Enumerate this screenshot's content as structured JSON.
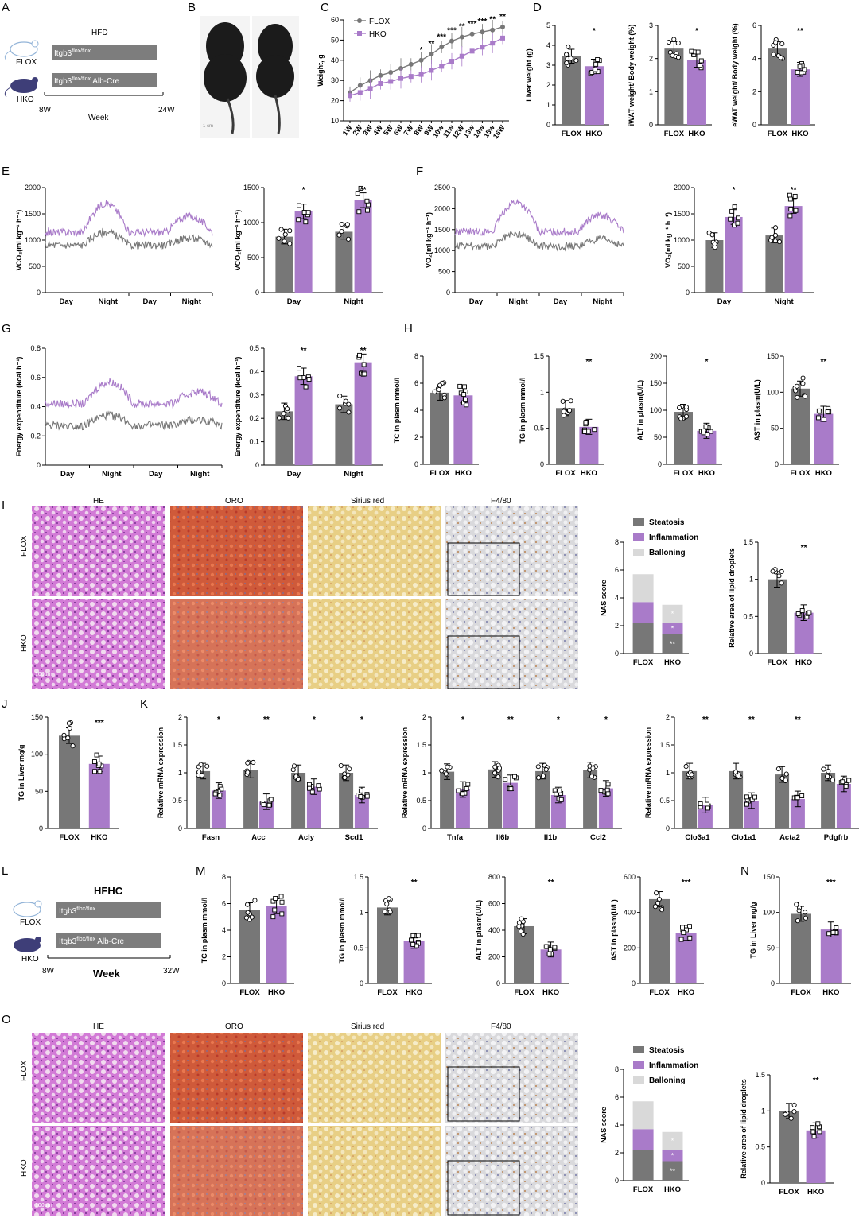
{
  "colors": {
    "flox": "#777777",
    "hko": "#a97bc9",
    "ballooning": "#d9d9d9",
    "axis": "#000000"
  },
  "panel_letters": [
    "A",
    "B",
    "C",
    "D",
    "E",
    "F",
    "G",
    "H",
    "I",
    "J",
    "K",
    "L",
    "M",
    "N",
    "O"
  ],
  "group_labels": {
    "flox": "FLOX",
    "hko": "HKO"
  },
  "panelA": {
    "diet": "HFD",
    "flox_label": "FLOX",
    "hko_label": "HKO",
    "flox_geno": "Itgb3",
    "flox_sup": "flox/flox",
    "hko_geno": "Itgb3",
    "hko_sup": "flox/flox",
    "hko_suffix": " Alb-Cre",
    "start": "8W",
    "end": "24W",
    "axis_title": "Week"
  },
  "panelB": {
    "scale": "1 cm"
  },
  "panelL": {
    "diet": "HFHC",
    "flox_label": "FLOX",
    "hko_label": "HKO",
    "flox_geno": "Itgb3",
    "flox_sup": "flox/flox",
    "hko_geno": "Itgb3",
    "hko_sup": "flox/flox",
    "hko_suffix": " Alb-Cre",
    "start": "8W",
    "end": "32W",
    "axis_title": "Week"
  },
  "histology_I": {
    "columns": [
      "HE",
      "ORO",
      "Sirius red",
      "F4/80"
    ],
    "rows": [
      "FLOX",
      "HKO"
    ],
    "scale": "100μm"
  },
  "histology_O": {
    "columns": [
      "HE",
      "ORO",
      "Sirius red",
      "F4/80"
    ],
    "rows": [
      "FLOX",
      "HKO"
    ],
    "scale": "100μm"
  },
  "chart_data": [
    {
      "id": "C",
      "type": "line",
      "title": "",
      "xlabel": "",
      "ylabel": "Weight, g",
      "ylim": [
        10,
        60
      ],
      "yticks": [
        10,
        20,
        30,
        40,
        50,
        60
      ],
      "categories": [
        "1W",
        "2W",
        "3W",
        "4W",
        "5W",
        "6W",
        "7W",
        "8W",
        "9W",
        "10w",
        "11w",
        "12W",
        "13w",
        "14w",
        "15w",
        "16W"
      ],
      "series": [
        {
          "name": "FLOX",
          "values": [
            24,
            27.5,
            30,
            32.5,
            34,
            36,
            38,
            40,
            43,
            46.5,
            49.5,
            51.5,
            53,
            54,
            55,
            56.5
          ]
        },
        {
          "name": "HKO",
          "values": [
            22.5,
            24,
            26,
            28.5,
            29.5,
            31,
            32,
            33,
            35,
            37,
            39.5,
            42,
            44.5,
            46.5,
            48.5,
            51
          ]
        }
      ],
      "significance": [
        "",
        "",
        "",
        "",
        "",
        "",
        "",
        "*",
        "**",
        "***",
        "***",
        "**",
        "***",
        "***",
        "**",
        "**"
      ],
      "legend": "top-left"
    },
    {
      "id": "D1",
      "type": "bar",
      "categories": [
        "FLOX",
        "HKO"
      ],
      "values": [
        3.45,
        2.95
      ],
      "ylabel": "Liver weight (g)",
      "ylim": [
        0,
        5
      ],
      "yticks": [
        0,
        1,
        2,
        3,
        4,
        5
      ],
      "significance": "*"
    },
    {
      "id": "D2",
      "type": "bar",
      "categories": [
        "FLOX",
        "HKO"
      ],
      "values": [
        2.3,
        1.95
      ],
      "ylabel": "iWAT weight/ Body weight (%)",
      "ylim": [
        0,
        3
      ],
      "yticks": [
        0,
        1,
        2,
        3
      ],
      "significance": "*"
    },
    {
      "id": "D3",
      "type": "bar",
      "categories": [
        "FLOX",
        "HKO"
      ],
      "values": [
        4.6,
        3.35
      ],
      "ylabel": "eWAT weight/ Body weight (%)",
      "ylim": [
        0,
        6
      ],
      "yticks": [
        0,
        2,
        4,
        6
      ],
      "significance": "**"
    },
    {
      "id": "E1",
      "type": "line",
      "ylabel": "VCO₂(ml kg⁻¹ h⁻¹)",
      "ylim": [
        0,
        2000
      ],
      "yticks": [
        0,
        500,
        1000,
        1500,
        2000
      ],
      "xlabels": [
        "Day",
        "Night",
        "Day",
        "Night"
      ],
      "series": [
        {
          "name": "FLOX",
          "baseline": 900,
          "night_bump": 250
        },
        {
          "name": "HKO",
          "baseline": 1150,
          "night_bump": 550
        }
      ]
    },
    {
      "id": "E2",
      "type": "bar",
      "groups": [
        "Day",
        "Night"
      ],
      "series": [
        {
          "name": "FLOX",
          "values": [
            800,
            870
          ]
        },
        {
          "name": "HKO",
          "values": [
            1160,
            1320
          ]
        }
      ],
      "ylabel": "VCO₂(ml kg⁻¹ h⁻¹)",
      "ylim": [
        0,
        1500
      ],
      "yticks": [
        0,
        500,
        1000,
        1500
      ],
      "significance": [
        "*",
        "**"
      ]
    },
    {
      "id": "F1",
      "type": "line",
      "ylabel": "VO₂(ml kg⁻¹ h⁻¹)",
      "ylim": [
        0,
        2500
      ],
      "yticks": [
        0,
        500,
        1000,
        1500,
        2000,
        2500
      ],
      "xlabels": [
        "Day",
        "Night",
        "Day",
        "Night"
      ],
      "series": [
        {
          "name": "FLOX",
          "baseline": 1100,
          "night_bump": 300
        },
        {
          "name": "HKO",
          "baseline": 1450,
          "night_bump": 700
        }
      ]
    },
    {
      "id": "F2",
      "type": "bar",
      "groups": [
        "Day",
        "Night"
      ],
      "series": [
        {
          "name": "FLOX",
          "values": [
            1000,
            1090
          ]
        },
        {
          "name": "HKO",
          "values": [
            1440,
            1650
          ]
        }
      ],
      "ylabel": "VO₂(ml kg⁻¹ h⁻¹)",
      "ylim": [
        0,
        2000
      ],
      "yticks": [
        0,
        500,
        1000,
        1500,
        2000
      ],
      "significance": [
        "*",
        "**"
      ]
    },
    {
      "id": "G1",
      "type": "line",
      "ylabel": "Energy expenditure (kcal h⁻¹)",
      "ylim": [
        0,
        0.8
      ],
      "yticks": [
        0,
        0.2,
        0.4,
        0.6,
        0.8
      ],
      "xlabels": [
        "Day",
        "Night",
        "Day",
        "Night"
      ],
      "series": [
        {
          "name": "FLOX",
          "baseline": 0.27,
          "night_bump": 0.07
        },
        {
          "name": "HKO",
          "baseline": 0.42,
          "night_bump": 0.15
        }
      ]
    },
    {
      "id": "G2",
      "type": "bar",
      "groups": [
        "Day",
        "Night"
      ],
      "series": [
        {
          "name": "FLOX",
          "values": [
            0.23,
            0.26
          ]
        },
        {
          "name": "HKO",
          "values": [
            0.38,
            0.44
          ]
        }
      ],
      "ylabel": "Energy expenditure (kcal h⁻¹)",
      "ylim": [
        0,
        0.5
      ],
      "yticks": [
        0,
        0.1,
        0.2,
        0.3,
        0.4,
        0.5
      ],
      "significance": [
        "**",
        "**"
      ]
    },
    {
      "id": "H1",
      "type": "bar",
      "categories": [
        "FLOX",
        "HKO"
      ],
      "values": [
        5.3,
        5.1
      ],
      "ylabel": "TC in plasm mmol/l",
      "ylim": [
        0,
        8
      ],
      "yticks": [
        0,
        2,
        4,
        6,
        8
      ],
      "significance": ""
    },
    {
      "id": "H2",
      "type": "bar",
      "categories": [
        "FLOX",
        "HKO"
      ],
      "values": [
        0.78,
        0.52
      ],
      "ylabel": "TG in plasm mmol/l",
      "ylim": [
        0,
        1.5
      ],
      "yticks": [
        0,
        0.5,
        1,
        1.5
      ],
      "significance": "**"
    },
    {
      "id": "H3",
      "type": "bar",
      "categories": [
        "FLOX",
        "HKO"
      ],
      "values": [
        97,
        62
      ],
      "ylabel": "ALT in plasm(U/L)",
      "ylim": [
        0,
        200
      ],
      "yticks": [
        0,
        50,
        100,
        150,
        200
      ],
      "significance": "*"
    },
    {
      "id": "H4",
      "type": "bar",
      "categories": [
        "FLOX",
        "HKO"
      ],
      "values": [
        105,
        70
      ],
      "ylabel": "AST in plasm(U/L)",
      "ylim": [
        0,
        150
      ],
      "yticks": [
        0,
        50,
        100,
        150
      ],
      "significance": "**"
    },
    {
      "id": "I1",
      "type": "stacked_bar",
      "categories": [
        "FLOX",
        "HKO"
      ],
      "ylabel": "NAS score",
      "ylim": [
        0,
        8
      ],
      "yticks": [
        0,
        2,
        4,
        6,
        8
      ],
      "series": [
        {
          "name": "Steatosis",
          "values": [
            2.2,
            1.4
          ]
        },
        {
          "name": "Inflammation",
          "values": [
            1.5,
            0.8
          ]
        },
        {
          "name": "Balloning",
          "values": [
            2.0,
            1.3
          ]
        }
      ],
      "significance": [
        "**",
        "*",
        "*"
      ],
      "legend": "top"
    },
    {
      "id": "I2",
      "type": "bar",
      "categories": [
        "FLOX",
        "HKO"
      ],
      "values": [
        1.0,
        0.55
      ],
      "ylabel": "Relative area of lipid droplets",
      "ylim": [
        0,
        1.5
      ],
      "yticks": [
        0,
        0.5,
        1,
        1.5
      ],
      "significance": "**"
    },
    {
      "id": "J",
      "type": "bar",
      "categories": [
        "FLOX",
        "HKO"
      ],
      "values": [
        125,
        87
      ],
      "ylabel": "TG in Liver mg/g",
      "ylim": [
        0,
        150
      ],
      "yticks": [
        0,
        50,
        100,
        150
      ],
      "significance": "***"
    },
    {
      "id": "K1",
      "type": "bar",
      "groups": [
        "Fasn",
        "Acc",
        "Acly",
        "Scd1"
      ],
      "series": [
        {
          "name": "FLOX",
          "values": [
            1.03,
            1.05,
            1.0,
            1.0
          ]
        },
        {
          "name": "HKO",
          "values": [
            0.68,
            0.48,
            0.75,
            0.6
          ]
        }
      ],
      "ylabel": "Relative mRNA  expression",
      "ylim": [
        0,
        2
      ],
      "yticks": [
        0,
        0.5,
        1,
        1.5,
        2
      ],
      "significance": [
        "*",
        "**",
        "*",
        "*"
      ]
    },
    {
      "id": "K2",
      "type": "bar",
      "groups": [
        "Tnfa",
        "Il6b",
        "Il1b",
        "Ccl2"
      ],
      "series": [
        {
          "name": "FLOX",
          "values": [
            1.02,
            1.06,
            1.03,
            1.05
          ]
        },
        {
          "name": "HKO",
          "values": [
            0.7,
            0.82,
            0.6,
            0.72
          ]
        }
      ],
      "ylabel": "Relative mRNA  expression",
      "ylim": [
        0,
        2
      ],
      "yticks": [
        0,
        0.5,
        1,
        1.5,
        2
      ],
      "significance": [
        "*",
        "**",
        "*",
        "*"
      ]
    },
    {
      "id": "K3",
      "type": "bar",
      "groups": [
        "Clo3a1",
        "Clo1a1",
        "Acta2",
        "Pdgfrb"
      ],
      "series": [
        {
          "name": "FLOX",
          "values": [
            1.03,
            1.03,
            0.97,
            1.0
          ]
        },
        {
          "name": "HKO",
          "values": [
            0.42,
            0.5,
            0.53,
            0.8
          ]
        }
      ],
      "ylabel": "Relative mRNA  expression",
      "ylim": [
        0,
        2
      ],
      "yticks": [
        0,
        0.5,
        1,
        1.5,
        2
      ],
      "significance": [
        "**",
        "**",
        "**",
        ""
      ]
    },
    {
      "id": "M1",
      "type": "bar",
      "categories": [
        "FLOX",
        "HKO"
      ],
      "values": [
        5.5,
        5.8
      ],
      "ylabel": "TC in plasm mmol/l",
      "ylim": [
        0,
        8
      ],
      "yticks": [
        0,
        2,
        4,
        6,
        8
      ],
      "significance": ""
    },
    {
      "id": "M2",
      "type": "bar",
      "categories": [
        "FLOX",
        "HKO"
      ],
      "values": [
        1.07,
        0.6
      ],
      "ylabel": "TG in plasm mmol/l",
      "ylim": [
        0,
        1.5
      ],
      "yticks": [
        0,
        0.5,
        1,
        1.5
      ],
      "significance": "**"
    },
    {
      "id": "M3",
      "type": "bar",
      "categories": [
        "FLOX",
        "HKO"
      ],
      "values": [
        430,
        255
      ],
      "ylabel": "ALT in plasm(U/L)",
      "ylim": [
        0,
        800
      ],
      "yticks": [
        0,
        200,
        400,
        600,
        800
      ],
      "significance": "**"
    },
    {
      "id": "M4",
      "type": "bar",
      "categories": [
        "FLOX",
        "HKO"
      ],
      "values": [
        475,
        285
      ],
      "ylabel": "AST in plasm(U/L)",
      "ylim": [
        0,
        600
      ],
      "yticks": [
        0,
        200,
        400,
        600
      ],
      "significance": "***"
    },
    {
      "id": "N",
      "type": "bar",
      "categories": [
        "FLOX",
        "HKO"
      ],
      "values": [
        98,
        76
      ],
      "ylabel": "TG in Liver mg/g",
      "ylim": [
        0,
        150
      ],
      "yticks": [
        0,
        50,
        100,
        150
      ],
      "significance": "***"
    },
    {
      "id": "O1",
      "type": "stacked_bar",
      "categories": [
        "FLOX",
        "HKO"
      ],
      "ylabel": "NAS score",
      "ylim": [
        0,
        8
      ],
      "yticks": [
        0,
        2,
        4,
        6,
        8
      ],
      "series": [
        {
          "name": "Steatosis",
          "values": [
            2.2,
            1.4
          ]
        },
        {
          "name": "Inflammation",
          "values": [
            1.5,
            0.8
          ]
        },
        {
          "name": "Balloning",
          "values": [
            2.0,
            1.3
          ]
        }
      ],
      "significance": [
        "**",
        "*",
        "*"
      ],
      "legend": "top"
    },
    {
      "id": "O2",
      "type": "bar",
      "categories": [
        "FLOX",
        "HKO"
      ],
      "values": [
        1.0,
        0.73
      ],
      "ylabel": "Relative area of lipid droplets",
      "ylim": [
        0,
        1.5
      ],
      "yticks": [
        0,
        0.5,
        1,
        1.5
      ],
      "significance": "**"
    }
  ]
}
